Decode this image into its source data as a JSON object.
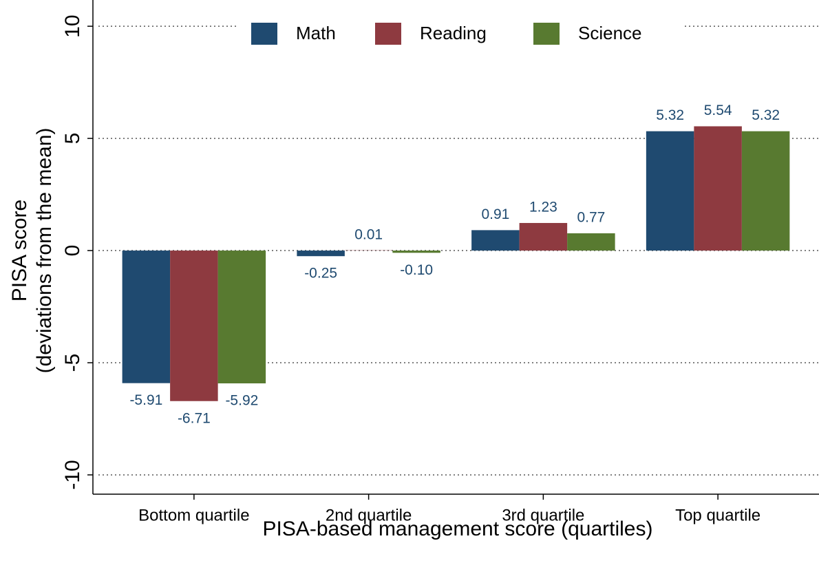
{
  "chart_data": {
    "type": "bar",
    "xlabel": "PISA-based management score (quartiles)",
    "ylabel": [
      "PISA score",
      "(deviations from the mean)"
    ],
    "categories": [
      "Bottom quartile",
      "2nd quartile",
      "3rd quartile",
      "Top quartile"
    ],
    "series": [
      {
        "name": "Math",
        "color": "#1f4a70",
        "values": [
          -5.91,
          -0.25,
          0.91,
          5.32
        ],
        "value_labels": [
          "-5.91",
          "-0.25",
          "0.91",
          "5.32"
        ]
      },
      {
        "name": "Reading",
        "color": "#8e3a40",
        "values": [
          -6.71,
          0.01,
          1.23,
          5.54
        ],
        "value_labels": [
          "-6.71",
          "0.01",
          "1.23",
          "5.54"
        ]
      },
      {
        "name": "Science",
        "color": "#587a30",
        "values": [
          -5.92,
          -0.1,
          0.77,
          5.32
        ],
        "value_labels": [
          "-5.92",
          "-0.10",
          "0.77",
          "5.32"
        ]
      }
    ],
    "ylim": [
      -10.86,
      11.17
    ],
    "yticks": [
      -10,
      -5,
      0,
      5,
      10
    ],
    "grid": true,
    "legend": "top"
  }
}
